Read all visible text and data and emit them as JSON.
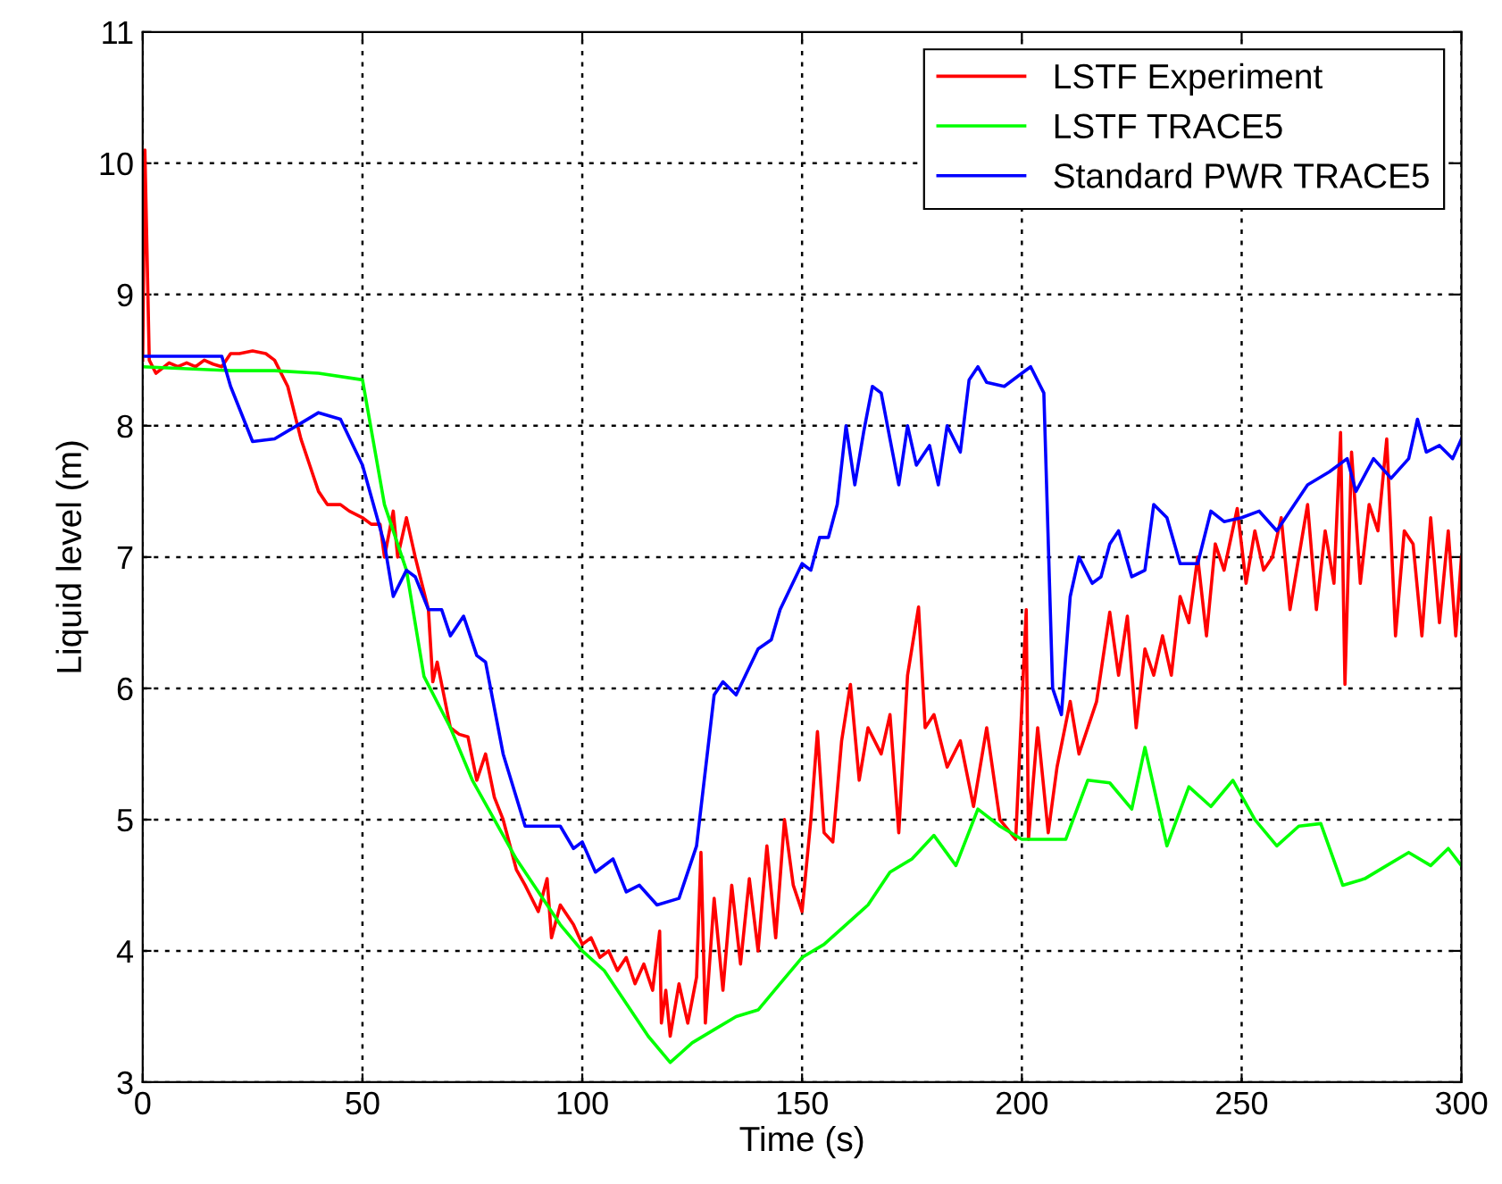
{
  "chart_data": {
    "type": "line",
    "xlabel": "Time (s)",
    "ylabel": "Liquid level (m)",
    "xlim": [
      0,
      300
    ],
    "ylim": [
      3,
      11
    ],
    "xticks": [
      0,
      50,
      100,
      150,
      200,
      250,
      300
    ],
    "yticks": [
      3,
      4,
      5,
      6,
      7,
      8,
      9,
      10,
      11
    ],
    "grid": true,
    "legend": "top right",
    "line_style": "solid",
    "marker": "none",
    "series": [
      {
        "name": "LSTF Experiment",
        "color": "#ff0000",
        "x": [
          0,
          0.5,
          1.5,
          3,
          6,
          8,
          10,
          12,
          14,
          16,
          18,
          20,
          22,
          25,
          28,
          30,
          33,
          36,
          38,
          40,
          42,
          45,
          47,
          50,
          52,
          54,
          55,
          57,
          58,
          60,
          62,
          65,
          66,
          67,
          70,
          72,
          74,
          76,
          78,
          80,
          82,
          85,
          87,
          90,
          92,
          93,
          95,
          98,
          100,
          102,
          104,
          106,
          108,
          110,
          112,
          114,
          116,
          117.6,
          118,
          119,
          120,
          122,
          124,
          126,
          127,
          128,
          130,
          132,
          134,
          136,
          138,
          140,
          142,
          144,
          146,
          148,
          150,
          152,
          153.5,
          155,
          157,
          159,
          161,
          163,
          165,
          168,
          170,
          172,
          174,
          176.5,
          178,
          180,
          183,
          186,
          189,
          192,
          195,
          198.6,
          201,
          201.5,
          203.6,
          206,
          208,
          211,
          213,
          215,
          217,
          220,
          222,
          224,
          226,
          228,
          230,
          232,
          234,
          236,
          238,
          240,
          242,
          244,
          246,
          249,
          251,
          253,
          255,
          257,
          259,
          261,
          263,
          265,
          267,
          269,
          271,
          272.5,
          273.5,
          275,
          277,
          279,
          281,
          283,
          285,
          287,
          289,
          291,
          293,
          295,
          297,
          298.7,
          300
        ],
        "values": [
          8.5,
          10.1,
          8.5,
          8.4,
          8.48,
          8.45,
          8.48,
          8.45,
          8.5,
          8.47,
          8.45,
          8.55,
          8.55,
          8.57,
          8.55,
          8.5,
          8.3,
          7.9,
          7.7,
          7.5,
          7.4,
          7.4,
          7.35,
          7.3,
          7.25,
          7.25,
          7.0,
          7.35,
          7.0,
          7.3,
          7.0,
          6.6,
          6.05,
          6.2,
          5.7,
          5.65,
          5.63,
          5.3,
          5.5,
          5.17,
          5.0,
          4.62,
          4.5,
          4.3,
          4.55,
          4.1,
          4.35,
          4.2,
          4.05,
          4.1,
          3.95,
          4.0,
          3.85,
          3.95,
          3.75,
          3.9,
          3.7,
          4.15,
          3.45,
          3.7,
          3.35,
          3.75,
          3.45,
          3.8,
          4.75,
          3.45,
          4.4,
          3.7,
          4.5,
          3.9,
          4.55,
          4.0,
          4.8,
          4.1,
          5.0,
          4.5,
          4.3,
          5.0,
          5.67,
          4.9,
          4.83,
          5.6,
          6.03,
          5.3,
          5.7,
          5.5,
          5.8,
          4.9,
          6.1,
          6.62,
          5.7,
          5.8,
          5.4,
          5.6,
          5.1,
          5.7,
          5.0,
          4.85,
          6.6,
          4.85,
          5.7,
          4.9,
          5.4,
          5.9,
          5.5,
          5.7,
          5.9,
          6.58,
          6.1,
          6.55,
          5.7,
          6.3,
          6.1,
          6.4,
          6.1,
          6.7,
          6.5,
          7.0,
          6.4,
          7.1,
          6.9,
          7.37,
          6.8,
          7.2,
          6.9,
          7.0,
          7.3,
          6.6,
          7.0,
          7.4,
          6.6,
          7.2,
          6.8,
          7.95,
          6.03,
          7.8,
          6.8,
          7.4,
          7.2,
          7.9,
          6.4,
          7.2,
          7.1,
          6.4,
          7.3,
          6.5,
          7.2,
          6.4,
          7.0
        ]
      },
      {
        "name": "LSTF TRACE5",
        "color": "#00ff00",
        "x": [
          0,
          20,
          30,
          40,
          50,
          55,
          60,
          64,
          70,
          75,
          80,
          85,
          90,
          95,
          100,
          105,
          110,
          115,
          120,
          125,
          130,
          135,
          140,
          145,
          150,
          155,
          160,
          165,
          170,
          175,
          180,
          185,
          190,
          195,
          200,
          205,
          210,
          215,
          220,
          225,
          228,
          233,
          238,
          243,
          248,
          253,
          258,
          263,
          268,
          273,
          278,
          283,
          288,
          293,
          297,
          300
        ],
        "values": [
          8.45,
          8.42,
          8.42,
          8.4,
          8.35,
          7.4,
          6.9,
          6.09,
          5.7,
          5.3,
          5.0,
          4.7,
          4.45,
          4.2,
          4.0,
          3.85,
          3.6,
          3.35,
          3.15,
          3.3,
          3.4,
          3.5,
          3.55,
          3.75,
          3.95,
          4.05,
          4.2,
          4.35,
          4.6,
          4.7,
          4.88,
          4.65,
          5.08,
          4.95,
          4.85,
          4.85,
          4.85,
          5.3,
          5.28,
          5.08,
          5.55,
          4.8,
          5.25,
          5.1,
          5.3,
          5.0,
          4.8,
          4.95,
          4.97,
          4.5,
          4.55,
          4.65,
          4.75,
          4.65,
          4.78,
          4.65
        ]
      },
      {
        "name": "Standard PWR TRACE5",
        "color": "#0000ff",
        "x": [
          0,
          18,
          20,
          25,
          30,
          35,
          40,
          45,
          50,
          55,
          57,
          60,
          62,
          65,
          68,
          70,
          73,
          76,
          78,
          82,
          87,
          90,
          95,
          98,
          100,
          103,
          107,
          110,
          113,
          117,
          122,
          126,
          130,
          132,
          135,
          140,
          143,
          145,
          150,
          152,
          154,
          156,
          158,
          160,
          162,
          164,
          166,
          168,
          172,
          174,
          176,
          179,
          181,
          183,
          186,
          188,
          190,
          192,
          196,
          200,
          202,
          205,
          207,
          209,
          211,
          213,
          216,
          218,
          220,
          222,
          225,
          228,
          230,
          233,
          236,
          240,
          243,
          246,
          250,
          254,
          258,
          262,
          265,
          270,
          274,
          276,
          280,
          284,
          288,
          290,
          292,
          295,
          298,
          300
        ],
        "values": [
          8.53,
          8.53,
          8.3,
          7.88,
          7.9,
          8.0,
          8.1,
          8.05,
          7.7,
          7.1,
          6.7,
          6.9,
          6.85,
          6.6,
          6.6,
          6.4,
          6.55,
          6.25,
          6.2,
          5.5,
          4.95,
          4.95,
          4.95,
          4.78,
          4.83,
          4.6,
          4.7,
          4.45,
          4.5,
          4.35,
          4.4,
          4.8,
          5.95,
          6.05,
          5.95,
          6.3,
          6.37,
          6.6,
          6.95,
          6.9,
          7.15,
          7.15,
          7.4,
          8.0,
          7.55,
          7.95,
          8.3,
          8.25,
          7.55,
          8.0,
          7.7,
          7.85,
          7.55,
          8.0,
          7.8,
          8.35,
          8.45,
          8.33,
          8.3,
          8.4,
          8.45,
          8.25,
          6.0,
          5.8,
          6.7,
          7.0,
          6.8,
          6.85,
          7.1,
          7.2,
          6.85,
          6.9,
          7.4,
          7.3,
          6.95,
          6.95,
          7.35,
          7.27,
          7.3,
          7.35,
          7.2,
          7.4,
          7.55,
          7.65,
          7.75,
          7.5,
          7.75,
          7.6,
          7.75,
          8.05,
          7.8,
          7.85,
          7.75,
          7.9
        ]
      }
    ]
  }
}
